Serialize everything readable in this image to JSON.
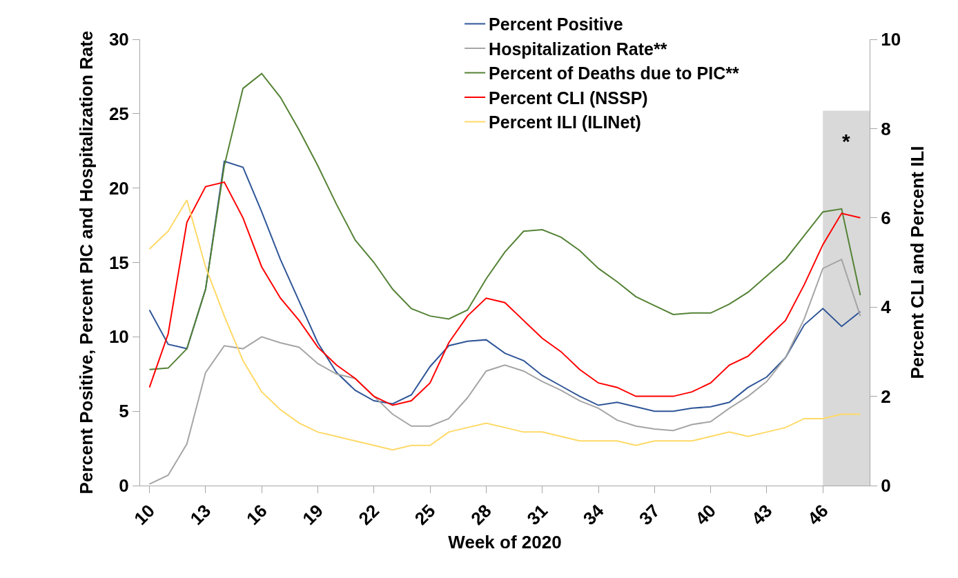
{
  "chart_data": {
    "type": "line",
    "xlabel": "Week of 2020",
    "ylabel": "Percent Positive, Percent PIC and Hospitalization Rate",
    "y2label": "Percent CLI and Percent ILI",
    "x": [
      10,
      11,
      12,
      13,
      14,
      15,
      16,
      17,
      18,
      19,
      20,
      21,
      22,
      23,
      24,
      25,
      26,
      27,
      28,
      29,
      30,
      31,
      32,
      33,
      34,
      35,
      36,
      37,
      38,
      39,
      40,
      41,
      42,
      43,
      44,
      45,
      46,
      47,
      48
    ],
    "xlim": [
      9.5,
      48.5
    ],
    "xticks": [
      10,
      13,
      16,
      19,
      22,
      25,
      28,
      31,
      34,
      37,
      40,
      43,
      46
    ],
    "ylim": [
      0,
      30
    ],
    "yticks": [
      0,
      5,
      10,
      15,
      20,
      25,
      30
    ],
    "y2lim": [
      0,
      10
    ],
    "y2ticks": [
      0,
      2,
      4,
      6,
      8,
      10
    ],
    "grid": false,
    "legend": "top",
    "marker": "none",
    "line_style": "solid",
    "bands": [
      {
        "axis": "x",
        "from": 46,
        "to": 48.5,
        "label": "*",
        "color": "#d9d9d9"
      }
    ],
    "series": [
      {
        "name": "Percent Positive",
        "color": "#2f5597",
        "values": [
          11.8,
          9.5,
          9.2,
          13.2,
          21.8,
          21.4,
          18.4,
          15.2,
          12.4,
          9.6,
          7.6,
          6.4,
          5.7,
          5.5,
          6.1,
          8.0,
          9.4,
          9.7,
          9.8,
          8.9,
          8.4,
          7.4,
          6.7,
          6.0,
          5.4,
          5.6,
          5.3,
          5.0,
          5.0,
          5.2,
          5.3,
          5.6,
          6.6,
          7.3,
          8.6,
          10.8,
          11.9,
          10.7,
          11.7
        ]
      },
      {
        "name": "Hospitalization Rate**",
        "color": "#a5a5a5",
        "values": [
          0.1,
          0.7,
          2.8,
          7.6,
          9.4,
          9.2,
          10.0,
          9.6,
          9.3,
          8.2,
          7.5,
          7.2,
          6.0,
          4.8,
          4.0,
          4.0,
          4.5,
          5.9,
          7.7,
          8.1,
          7.7,
          7.0,
          6.4,
          5.7,
          5.2,
          4.4,
          4.0,
          3.8,
          3.7,
          4.1,
          4.3,
          5.2,
          6.0,
          7.0,
          8.6,
          11.2,
          14.6,
          15.2,
          11.4
        ]
      },
      {
        "name": "Percent of Deaths due to PIC**",
        "color": "#548235",
        "values": [
          7.8,
          7.9,
          9.2,
          13.2,
          21.5,
          26.7,
          27.7,
          26.1,
          23.9,
          21.5,
          18.9,
          16.5,
          15.0,
          13.2,
          11.9,
          11.4,
          11.2,
          11.8,
          13.9,
          15.7,
          17.1,
          17.2,
          16.7,
          15.8,
          14.6,
          13.7,
          12.7,
          12.1,
          11.5,
          11.6,
          11.6,
          12.2,
          13.0,
          14.1,
          15.2,
          16.8,
          18.4,
          18.6,
          12.8
        ]
      },
      {
        "name": "Percent CLI (NSSP)",
        "color": "#ff0000",
        "axis": "y2",
        "values": [
          2.2,
          3.4,
          5.9,
          6.7,
          6.8,
          6.0,
          4.9,
          4.2,
          3.7,
          3.1,
          2.7,
          2.4,
          2.0,
          1.8,
          1.9,
          2.3,
          3.2,
          3.8,
          4.2,
          4.1,
          3.7,
          3.3,
          3.0,
          2.6,
          2.3,
          2.2,
          2.0,
          2.0,
          2.0,
          2.1,
          2.3,
          2.7,
          2.9,
          3.3,
          3.7,
          4.5,
          5.4,
          6.1,
          6.0
        ]
      },
      {
        "name": "Percent ILI (ILINet)",
        "color": "#ffd966",
        "axis": "y2",
        "values": [
          5.3,
          5.7,
          6.4,
          4.9,
          3.8,
          2.8,
          2.1,
          1.7,
          1.4,
          1.2,
          1.1,
          1.0,
          0.9,
          0.8,
          0.9,
          0.9,
          1.2,
          1.3,
          1.4,
          1.3,
          1.2,
          1.2,
          1.1,
          1.0,
          1.0,
          1.0,
          0.9,
          1.0,
          1.0,
          1.0,
          1.1,
          1.2,
          1.1,
          1.2,
          1.3,
          1.5,
          1.5,
          1.6,
          1.6
        ]
      }
    ]
  }
}
